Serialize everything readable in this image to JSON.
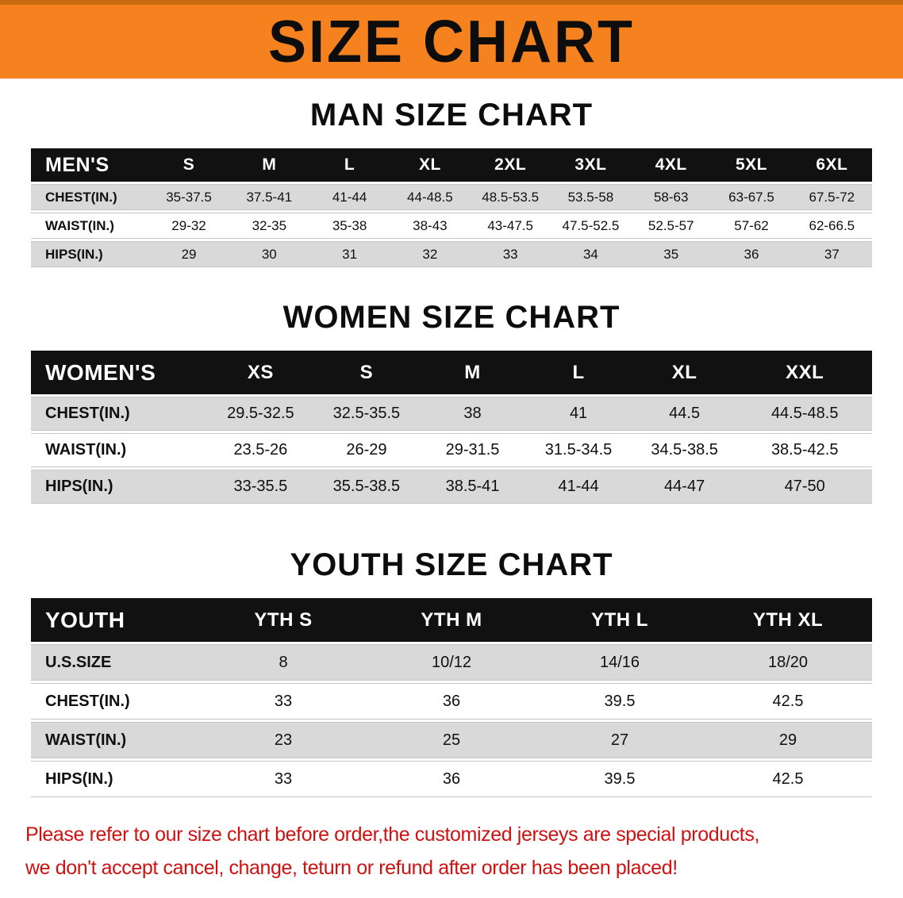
{
  "banner": {
    "title": "SIZE CHART"
  },
  "sections": {
    "men": {
      "heading": "MAN SIZE CHART",
      "table": {
        "header": [
          "MEN'S",
          "S",
          "M",
          "L",
          "XL",
          "2XL",
          "3XL",
          "4XL",
          "5XL",
          "6XL"
        ],
        "rows": [
          [
            "CHEST(IN.)",
            "35-37.5",
            "37.5-41",
            "41-44",
            "44-48.5",
            "48.5-53.5",
            "53.5-58",
            "58-63",
            "63-67.5",
            "67.5-72"
          ],
          [
            "WAIST(IN.)",
            "29-32",
            "32-35",
            "35-38",
            "38-43",
            "43-47.5",
            "47.5-52.5",
            "52.5-57",
            "57-62",
            "62-66.5"
          ],
          [
            "HIPS(IN.)",
            "29",
            "30",
            "31",
            "32",
            "33",
            "34",
            "35",
            "36",
            "37"
          ]
        ]
      }
    },
    "women": {
      "heading": "WOMEN SIZE CHART",
      "table": {
        "header": [
          "WOMEN'S",
          "XS",
          "S",
          "M",
          "L",
          "XL",
          "XXL"
        ],
        "rows": [
          [
            "CHEST(IN.)",
            "29.5-32.5",
            "32.5-35.5",
            "38",
            "41",
            "44.5",
            "44.5-48.5"
          ],
          [
            "WAIST(IN.)",
            "23.5-26",
            "26-29",
            "29-31.5",
            "31.5-34.5",
            "34.5-38.5",
            "38.5-42.5"
          ],
          [
            "HIPS(IN.)",
            "33-35.5",
            "35.5-38.5",
            "38.5-41",
            "41-44",
            "44-47",
            "47-50"
          ]
        ]
      }
    },
    "youth": {
      "heading": "YOUTH SIZE CHART",
      "table": {
        "header": [
          "YOUTH",
          "YTH S",
          "YTH M",
          "YTH L",
          "YTH XL"
        ],
        "rows": [
          [
            "U.S.SIZE",
            "8",
            "10/12",
            "14/16",
            "18/20"
          ],
          [
            "CHEST(IN.)",
            "33",
            "36",
            "39.5",
            "42.5"
          ],
          [
            "WAIST(IN.)",
            "23",
            "25",
            "27",
            "29"
          ],
          [
            "HIPS(IN.)",
            "33",
            "36",
            "39.5",
            "42.5"
          ]
        ]
      }
    }
  },
  "disclaimer": {
    "line1": "Please refer to our size chart before order,the customized jerseys are special products,",
    "line2": "we don't accept cancel, change, teturn or refund after order has been placed!"
  },
  "colors": {
    "banner_bg": "#F5821F",
    "banner_top_edge": "#C96A10",
    "table_header_bg": "#111111",
    "row_alt_bg": "#D9D9D9",
    "disclaimer_text": "#CE1212"
  }
}
